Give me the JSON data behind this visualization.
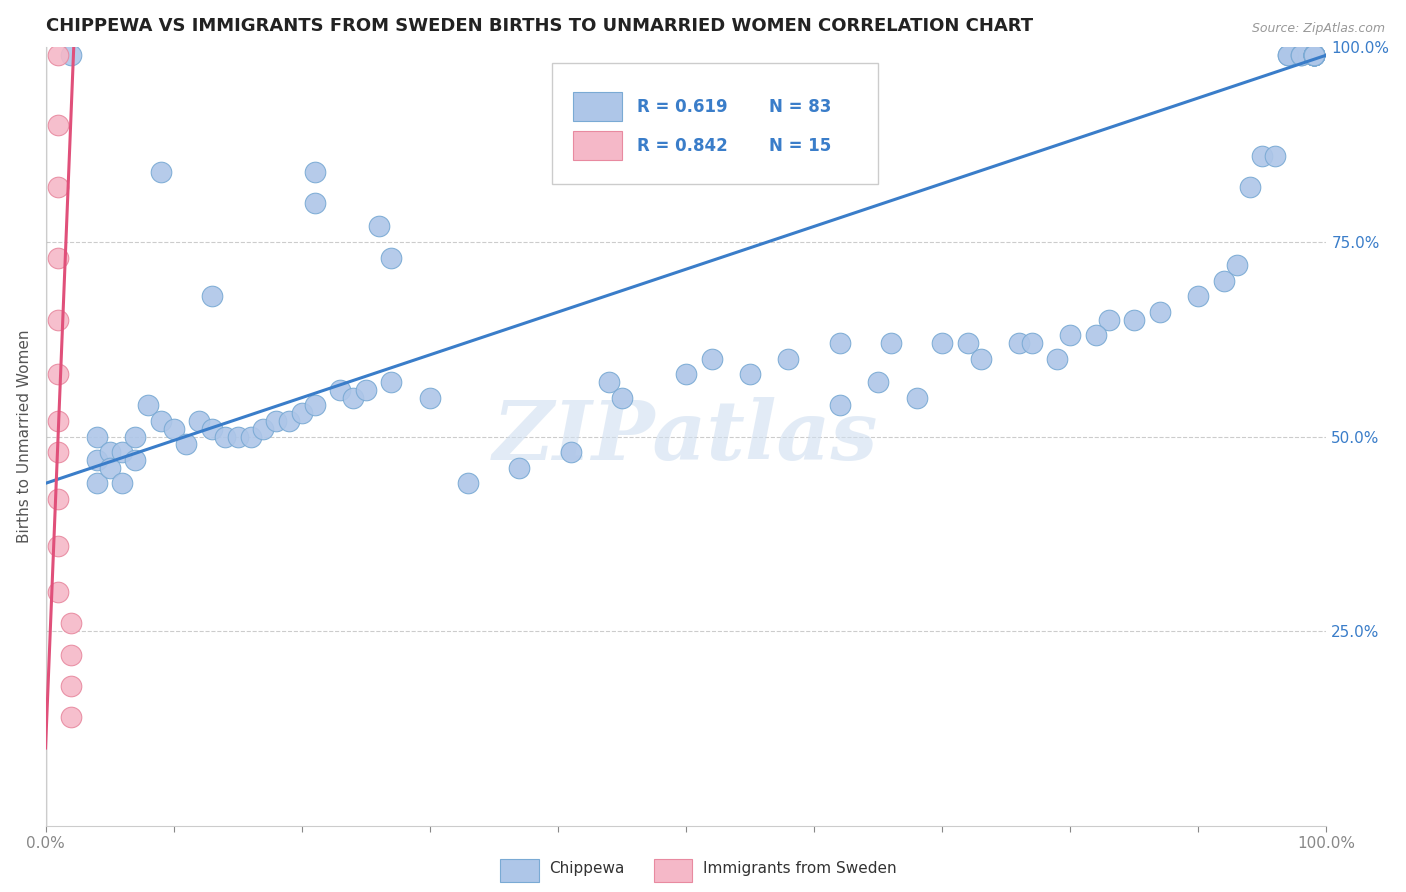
{
  "title": "CHIPPEWA VS IMMIGRANTS FROM SWEDEN BIRTHS TO UNMARRIED WOMEN CORRELATION CHART",
  "source": "Source: ZipAtlas.com",
  "ylabel": "Births to Unmarried Women",
  "xlim": [
    0.0,
    1.0
  ],
  "ylim": [
    0.0,
    1.0
  ],
  "ytick_right_labels": [
    "100.0%",
    "75.0%",
    "50.0%",
    "25.0%"
  ],
  "ytick_right_values": [
    1.0,
    0.75,
    0.5,
    0.25
  ],
  "legend_r1": "R = 0.619",
  "legend_n1": "N = 83",
  "legend_r2": "R = 0.842",
  "legend_n2": "N = 15",
  "blue_color": "#aec6e8",
  "blue_edge": "#7aaad4",
  "pink_color": "#f5b8c8",
  "pink_edge": "#e88aa0",
  "trend_blue": "#3a7dc9",
  "trend_pink": "#e0507a",
  "label_color": "#3a7dc9",
  "watermark_color": "#d0dff0",
  "blue_scatter_x": [
    0.02,
    0.09,
    0.21,
    0.21,
    0.26,
    0.27,
    0.13,
    0.04,
    0.04,
    0.04,
    0.05,
    0.05,
    0.06,
    0.06,
    0.07,
    0.07,
    0.08,
    0.09,
    0.1,
    0.11,
    0.12,
    0.13,
    0.14,
    0.15,
    0.16,
    0.17,
    0.18,
    0.19,
    0.2,
    0.21,
    0.23,
    0.24,
    0.25,
    0.27,
    0.3,
    0.33,
    0.37,
    0.41,
    0.44,
    0.45,
    0.5,
    0.52,
    0.55,
    0.58,
    0.62,
    0.66,
    0.7,
    0.72,
    0.76,
    0.8,
    0.83,
    0.62,
    0.65,
    0.68,
    0.73,
    0.77,
    0.79,
    0.82,
    0.85,
    0.87,
    0.9,
    0.92,
    0.93,
    0.94,
    0.95,
    0.96,
    0.97,
    0.97,
    0.98,
    0.98,
    0.99,
    0.99,
    0.99,
    0.99,
    0.99,
    0.99,
    0.99,
    0.99,
    0.99,
    0.99,
    0.99,
    0.99,
    0.99
  ],
  "blue_scatter_y": [
    0.99,
    0.84,
    0.84,
    0.8,
    0.77,
    0.73,
    0.68,
    0.5,
    0.47,
    0.44,
    0.48,
    0.46,
    0.48,
    0.44,
    0.5,
    0.47,
    0.54,
    0.52,
    0.51,
    0.49,
    0.52,
    0.51,
    0.5,
    0.5,
    0.5,
    0.51,
    0.52,
    0.52,
    0.53,
    0.54,
    0.56,
    0.55,
    0.56,
    0.57,
    0.55,
    0.44,
    0.46,
    0.48,
    0.57,
    0.55,
    0.58,
    0.6,
    0.58,
    0.6,
    0.62,
    0.62,
    0.62,
    0.62,
    0.62,
    0.63,
    0.65,
    0.54,
    0.57,
    0.55,
    0.6,
    0.62,
    0.6,
    0.63,
    0.65,
    0.66,
    0.68,
    0.7,
    0.72,
    0.82,
    0.86,
    0.86,
    0.99,
    0.99,
    0.99,
    0.99,
    0.99,
    0.99,
    0.99,
    0.99,
    0.99,
    0.99,
    0.99,
    0.99,
    0.99,
    0.99,
    0.99,
    0.99,
    0.99
  ],
  "pink_scatter_x": [
    0.01,
    0.01,
    0.01,
    0.01,
    0.01,
    0.01,
    0.01,
    0.01,
    0.01,
    0.01,
    0.01,
    0.02,
    0.02,
    0.02,
    0.02
  ],
  "pink_scatter_y": [
    0.99,
    0.9,
    0.82,
    0.73,
    0.65,
    0.58,
    0.52,
    0.48,
    0.42,
    0.36,
    0.3,
    0.26,
    0.22,
    0.18,
    0.14
  ],
  "blue_trend_x": [
    0.0,
    1.0
  ],
  "blue_trend_y": [
    0.44,
    0.99
  ],
  "pink_trend_x": [
    0.0,
    0.022
  ],
  "pink_trend_y": [
    0.1,
    1.0
  ]
}
